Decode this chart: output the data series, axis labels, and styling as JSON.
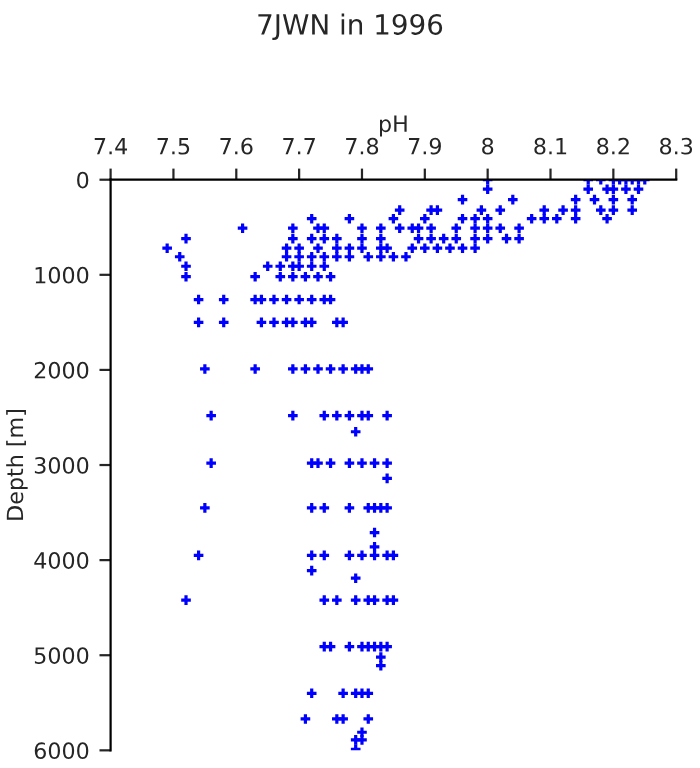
{
  "chart_data": {
    "type": "scatter",
    "title": "7JWN in 1996",
    "xlabel": "pH",
    "ylabel": "Depth [m]",
    "xlim": [
      7.4,
      8.3
    ],
    "xticks": [
      7.4,
      7.5,
      7.6,
      7.7,
      7.8,
      7.9,
      8,
      8.1,
      8.2,
      8.3
    ],
    "ylim": [
      6000,
      0
    ],
    "yticks": [
      0,
      1000,
      2000,
      3000,
      4000,
      5000,
      6000
    ],
    "marker": "cross",
    "grid": false,
    "series": [
      {
        "color": "#0000ff",
        "x": [
          8.0,
          8.16,
          8.18,
          8.2,
          8.21,
          8.22,
          8.23,
          8.24,
          8.25,
          8.0,
          8.16,
          8.19,
          8.2,
          8.22,
          8.24,
          7.96,
          8.04,
          8.14,
          8.17,
          8.2,
          8.23,
          7.86,
          7.91,
          7.92,
          7.99,
          8.02,
          8.09,
          8.12,
          8.14,
          8.18,
          8.2,
          8.23,
          7.72,
          7.78,
          7.85,
          7.9,
          7.96,
          7.98,
          8.0,
          8.07,
          8.09,
          8.11,
          8.14,
          8.19,
          7.61,
          7.69,
          7.73,
          7.74,
          7.8,
          7.83,
          7.86,
          7.88,
          7.89,
          7.91,
          7.95,
          7.98,
          8.0,
          8.02,
          8.05,
          7.52,
          7.69,
          7.72,
          7.74,
          7.76,
          7.8,
          7.83,
          7.89,
          7.91,
          7.93,
          7.95,
          7.98,
          8.0,
          8.03,
          8.05,
          7.49,
          7.68,
          7.7,
          7.73,
          7.76,
          7.78,
          7.8,
          7.83,
          7.84,
          7.88,
          7.9,
          7.92,
          7.94,
          7.96,
          7.98,
          7.51,
          7.68,
          7.7,
          7.72,
          7.74,
          7.76,
          7.78,
          7.81,
          7.83,
          7.85,
          7.87,
          7.52,
          7.65,
          7.67,
          7.69,
          7.7,
          7.72,
          7.74,
          7.52,
          7.63,
          7.67,
          7.69,
          7.71,
          7.73,
          7.75,
          7.54,
          7.58,
          7.63,
          7.64,
          7.66,
          7.68,
          7.7,
          7.72,
          7.74,
          7.75,
          7.54,
          7.58,
          7.64,
          7.66,
          7.68,
          7.69,
          7.71,
          7.72,
          7.76,
          7.77,
          7.55,
          7.63,
          7.69,
          7.71,
          7.73,
          7.75,
          7.77,
          7.79,
          7.8,
          7.81,
          7.56,
          7.69,
          7.74,
          7.76,
          7.78,
          7.8,
          7.81,
          7.84,
          7.79,
          7.56,
          7.72,
          7.73,
          7.75,
          7.78,
          7.8,
          7.82,
          7.84,
          7.84,
          7.55,
          7.72,
          7.74,
          7.78,
          7.81,
          7.82,
          7.83,
          7.84,
          7.82,
          7.82,
          7.54,
          7.72,
          7.74,
          7.78,
          7.8,
          7.82,
          7.84,
          7.85,
          7.72,
          7.79,
          7.52,
          7.74,
          7.76,
          7.79,
          7.81,
          7.82,
          7.84,
          7.85,
          7.74,
          7.75,
          7.78,
          7.8,
          7.81,
          7.82,
          7.83,
          7.84,
          7.83,
          7.83,
          7.72,
          7.77,
          7.79,
          7.8,
          7.81,
          7.71,
          7.76,
          7.77,
          7.81,
          7.8,
          7.79,
          7.8,
          7.79
        ],
        "values": [
          0,
          0,
          0,
          0,
          0,
          0,
          0,
          0,
          0,
          100,
          100,
          100,
          100,
          100,
          100,
          210,
          210,
          210,
          210,
          210,
          210,
          320,
          320,
          320,
          320,
          320,
          320,
          320,
          320,
          320,
          320,
          320,
          410,
          410,
          410,
          410,
          410,
          410,
          410,
          410,
          410,
          410,
          410,
          410,
          510,
          510,
          510,
          510,
          510,
          510,
          510,
          510,
          510,
          510,
          510,
          510,
          510,
          510,
          510,
          620,
          620,
          620,
          620,
          620,
          620,
          620,
          620,
          620,
          620,
          620,
          620,
          620,
          620,
          620,
          720,
          720,
          720,
          720,
          720,
          720,
          720,
          720,
          720,
          720,
          720,
          720,
          720,
          720,
          720,
          810,
          810,
          810,
          810,
          810,
          810,
          810,
          810,
          810,
          810,
          810,
          910,
          910,
          910,
          910,
          910,
          910,
          910,
          1020,
          1020,
          1020,
          1020,
          1020,
          1020,
          1020,
          1260,
          1260,
          1260,
          1260,
          1260,
          1260,
          1260,
          1260,
          1260,
          1260,
          1500,
          1500,
          1500,
          1500,
          1500,
          1500,
          1500,
          1500,
          1500,
          1500,
          1990,
          1990,
          1990,
          1990,
          1990,
          1990,
          1990,
          1990,
          1990,
          1990,
          2480,
          2480,
          2480,
          2480,
          2480,
          2480,
          2480,
          2480,
          2650,
          2980,
          2980,
          2980,
          2980,
          2980,
          2980,
          2980,
          2980,
          3140,
          3450,
          3450,
          3450,
          3450,
          3450,
          3450,
          3450,
          3450,
          3710,
          3860,
          3950,
          3950,
          3950,
          3950,
          3950,
          3950,
          3950,
          3950,
          4110,
          4190,
          4420,
          4420,
          4420,
          4420,
          4420,
          4420,
          4420,
          4420,
          4910,
          4910,
          4910,
          4910,
          4910,
          4910,
          4910,
          4910,
          5020,
          5110,
          5400,
          5400,
          5400,
          5400,
          5400,
          5670,
          5670,
          5670,
          5670,
          5810,
          5890,
          5890,
          5990
        ]
      }
    ]
  }
}
